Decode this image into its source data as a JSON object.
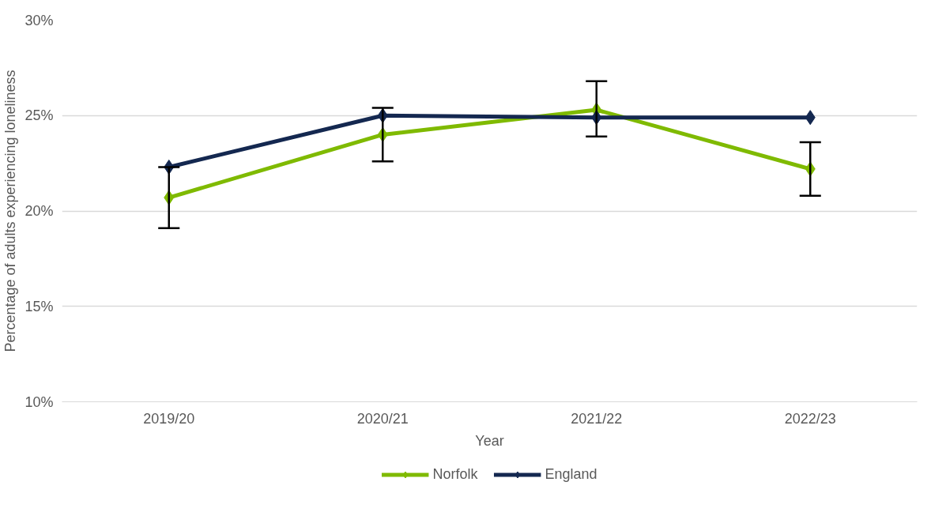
{
  "chart_data": {
    "type": "line",
    "xlabel": "Year",
    "ylabel": "Percentage of adults experiencing loneliness",
    "categories": [
      "2019/20",
      "2020/21",
      "2021/22",
      "2022/23"
    ],
    "series": [
      {
        "name": "Norfolk",
        "color": "#7fba00",
        "values": [
          20.7,
          24.0,
          25.3,
          22.2
        ],
        "errors": [
          [
            19.1,
            22.3
          ],
          [
            22.6,
            25.4
          ],
          [
            23.9,
            26.8
          ],
          [
            20.8,
            23.6
          ]
        ]
      },
      {
        "name": "England",
        "color": "#142850",
        "values": [
          22.3,
          25.0,
          24.9,
          24.9
        ]
      }
    ],
    "ylim": [
      10,
      30
    ],
    "yticks": [
      {
        "value": 10,
        "label": "10%"
      },
      {
        "value": 15,
        "label": "15%"
      },
      {
        "value": 20,
        "label": "20%"
      },
      {
        "value": 25,
        "label": "25%"
      },
      {
        "value": 30,
        "label": "30%"
      }
    ],
    "grid": "y",
    "legend": "bottom",
    "marker": "diamond",
    "line_style": "solid"
  }
}
